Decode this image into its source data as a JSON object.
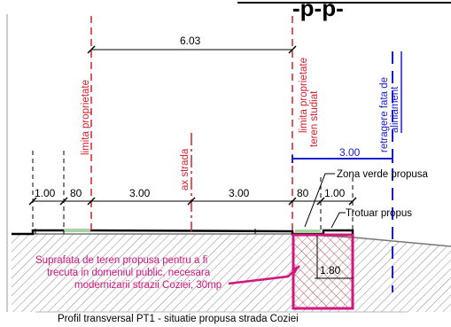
{
  "document": {
    "title_fragment": "-p-p-",
    "caption": "Profil transversal PT1 - situatie propusa strada Coziei"
  },
  "dimensions": {
    "public_domain_width": "6.03",
    "public_domain_label": "domeniul public",
    "setback_width": "3.00",
    "left_sidewalk": "1.00",
    "left_strip": "80",
    "left_lane": "3.00",
    "right_lane": "3.00",
    "right_strip": "80",
    "right_sidewalk": "1.00",
    "expropriation_depth": "1.80"
  },
  "labels": {
    "property_limit_left": "limita proprietate",
    "property_limit_right": "limita proprietate",
    "studied_land": "teren studiat",
    "road_axis": "ax strada",
    "alignment_setback_line1": "retragere fata de",
    "alignment_setback_line2": "aliniament",
    "green_zone": "Zona verde propusa",
    "sidewalk": "Trotuar propus",
    "surface_note_line1": "Suprafata de teren propusa pentru a fi",
    "surface_note_line2": "trecuta in domeniul public, necesara",
    "surface_note_line3": "modernizarii strazii Coziei, 30mp"
  },
  "colors": {
    "dimension_ink": "#000000",
    "property_line": "#d4202c",
    "setback_line": "#1a1ad0",
    "highlight": "#d4157e",
    "ground_hatch": "#888888",
    "green_zone": "#9fd79f"
  }
}
